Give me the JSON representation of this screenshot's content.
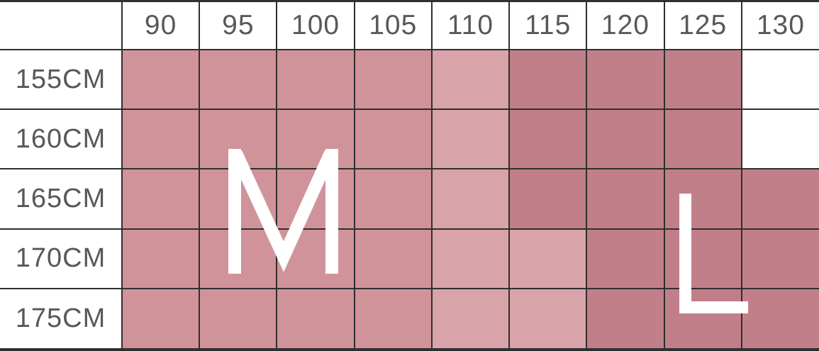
{
  "size_chart": {
    "corner_label": "",
    "columns": [
      "90",
      "95",
      "100",
      "105",
      "110",
      "115",
      "120",
      "125",
      "130"
    ],
    "rows": [
      {
        "label": "155CM",
        "tones": [
          "m",
          "m",
          "m",
          "m",
          "ml",
          "l",
          "l",
          "l",
          "w"
        ]
      },
      {
        "label": "160CM",
        "tones": [
          "m",
          "m",
          "m",
          "m",
          "ml",
          "l",
          "l",
          "l",
          "w"
        ]
      },
      {
        "label": "165CM",
        "tones": [
          "m",
          "m",
          "m",
          "m",
          "ml",
          "l",
          "l",
          "l",
          "l"
        ]
      },
      {
        "label": "170CM",
        "tones": [
          "m",
          "m",
          "m",
          "m",
          "ml",
          "ml",
          "l",
          "l",
          "l"
        ]
      },
      {
        "label": "175CM",
        "tones": [
          "m",
          "m",
          "m",
          "m",
          "ml",
          "ml",
          "l",
          "l",
          "l"
        ]
      }
    ],
    "size_labels": [
      {
        "text": "M"
      },
      {
        "text": "L"
      }
    ],
    "colors": {
      "m": "#d0939a",
      "ml": "#d8a4aa",
      "l": "#c18089",
      "w": "#ffffff",
      "grid": "#2f2f2f",
      "header_text": "#58585a",
      "size_letter": "#ffffff"
    }
  },
  "chart_data": {
    "type": "heatmap",
    "title": "",
    "xlabel": "",
    "ylabel": "",
    "x_categories": [
      "90",
      "95",
      "100",
      "105",
      "110",
      "115",
      "120",
      "125",
      "130"
    ],
    "y_categories": [
      "155CM",
      "160CM",
      "165CM",
      "170CM",
      "175CM"
    ],
    "values": [
      [
        "M",
        "M",
        "M",
        "M",
        "M",
        "L",
        "L",
        "L",
        ""
      ],
      [
        "M",
        "M",
        "M",
        "M",
        "M",
        "L",
        "L",
        "L",
        ""
      ],
      [
        "M",
        "M",
        "M",
        "M",
        "M",
        "L",
        "L",
        "L",
        "L"
      ],
      [
        "M",
        "M",
        "M",
        "M",
        "M",
        "M",
        "L",
        "L",
        "L"
      ],
      [
        "M",
        "M",
        "M",
        "M",
        "M",
        "M",
        "L",
        "L",
        "L"
      ]
    ],
    "annotations": [
      "M",
      "L"
    ],
    "legend_position": "none",
    "grid": true
  }
}
